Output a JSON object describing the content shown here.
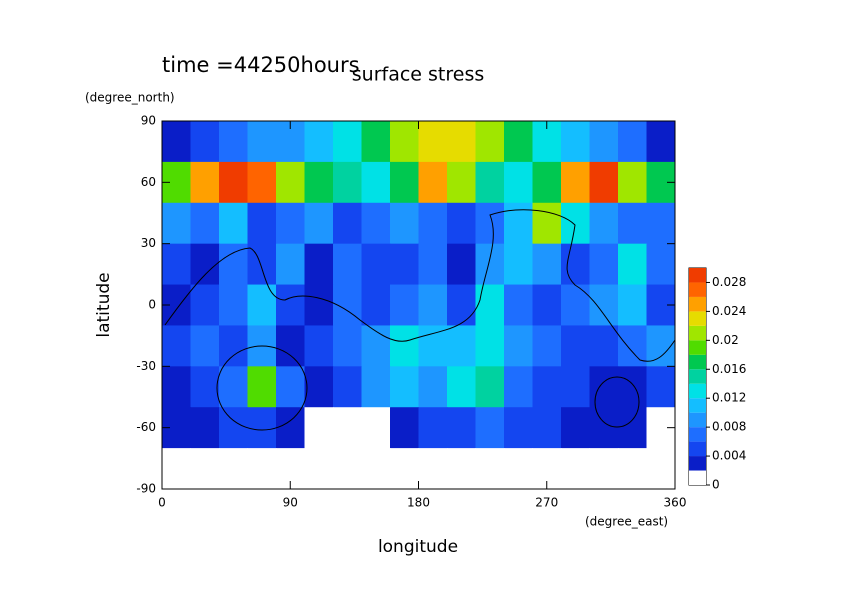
{
  "chart_data": {
    "type": "contour",
    "title": "surface stress",
    "subtitle": "time =44250hours",
    "x_label": "longitude",
    "x_unit": "(degree_east)",
    "y_label": "latitude",
    "y_unit": "(degree_north)",
    "x": [
      10,
      30,
      50,
      70,
      90,
      110,
      130,
      150,
      170,
      190,
      210,
      230,
      250,
      270,
      290,
      310,
      330,
      350
    ],
    "y": [
      80,
      60,
      40,
      20,
      0,
      -20,
      -40,
      -60,
      -80
    ],
    "z": [
      [
        0.002,
        0.004,
        0.006,
        0.008,
        0.008,
        0.01,
        0.012,
        0.016,
        0.02,
        0.022,
        0.022,
        0.02,
        0.016,
        0.012,
        0.01,
        0.008,
        0.006,
        0.002
      ],
      [
        0.018,
        0.024,
        0.03,
        0.026,
        0.02,
        0.016,
        0.014,
        0.012,
        0.016,
        0.024,
        0.02,
        0.014,
        0.012,
        0.016,
        0.024,
        0.028,
        0.02,
        0.016
      ],
      [
        0.008,
        0.006,
        0.01,
        0.004,
        0.006,
        0.008,
        0.004,
        0.006,
        0.008,
        0.006,
        0.004,
        0.006,
        0.01,
        0.02,
        0.012,
        0.008,
        0.006,
        0.006
      ],
      [
        0.004,
        0.002,
        0.006,
        0.004,
        0.008,
        0.002,
        0.006,
        0.004,
        0.004,
        0.006,
        0.002,
        0.008,
        0.01,
        0.008,
        0.004,
        0.006,
        0.012,
        0.006
      ],
      [
        0.002,
        0.004,
        0.006,
        0.01,
        0.004,
        0.002,
        0.006,
        0.004,
        0.006,
        0.008,
        0.004,
        0.012,
        0.006,
        0.004,
        0.006,
        0.008,
        0.01,
        0.004
      ],
      [
        0.004,
        0.006,
        0.004,
        0.008,
        0.002,
        0.004,
        0.006,
        0.008,
        0.012,
        0.01,
        0.01,
        0.012,
        0.008,
        0.006,
        0.004,
        0.004,
        0.006,
        0.008
      ],
      [
        0.002,
        0.004,
        0.006,
        0.018,
        0.006,
        0.002,
        0.004,
        0.008,
        0.01,
        0.008,
        0.012,
        0.014,
        0.006,
        0.004,
        0.004,
        0.002,
        0.002,
        0.004
      ],
      [
        0.002,
        0.002,
        0.004,
        0.004,
        0.002,
        0,
        0,
        0,
        0.002,
        0.004,
        0.004,
        0.006,
        0.004,
        0.004,
        0.002,
        0.002,
        0.002,
        0
      ],
      [
        0,
        0,
        0,
        0,
        0,
        0,
        0,
        0,
        0,
        0,
        0,
        0,
        0,
        0,
        0,
        0,
        0,
        0
      ]
    ],
    "levels": [
      0,
      0.002,
      0.004,
      0.006,
      0.008,
      0.01,
      0.012,
      0.014,
      0.016,
      0.018,
      0.02,
      0.022,
      0.024,
      0.026,
      0.028,
      0.03
    ],
    "colors": [
      "#ffffff",
      "#0a1ec8",
      "#1446f0",
      "#1e6eff",
      "#1e96ff",
      "#14beff",
      "#00e1e6",
      "#00d2a0",
      "#00c850",
      "#50dc00",
      "#a0e600",
      "#e6dc00",
      "#ffa000",
      "#ff6400",
      "#f03c00"
    ],
    "colorbar_ticks": [
      0,
      0.004,
      0.008,
      0.012,
      0.016,
      0.02,
      0.024,
      0.028
    ],
    "xlim": [
      0,
      360
    ],
    "xticks": [
      0,
      90,
      180,
      270,
      360
    ],
    "ylim": [
      -90,
      90
    ],
    "yticks": [
      -90,
      -60,
      -30,
      0,
      30,
      60,
      90
    ]
  }
}
